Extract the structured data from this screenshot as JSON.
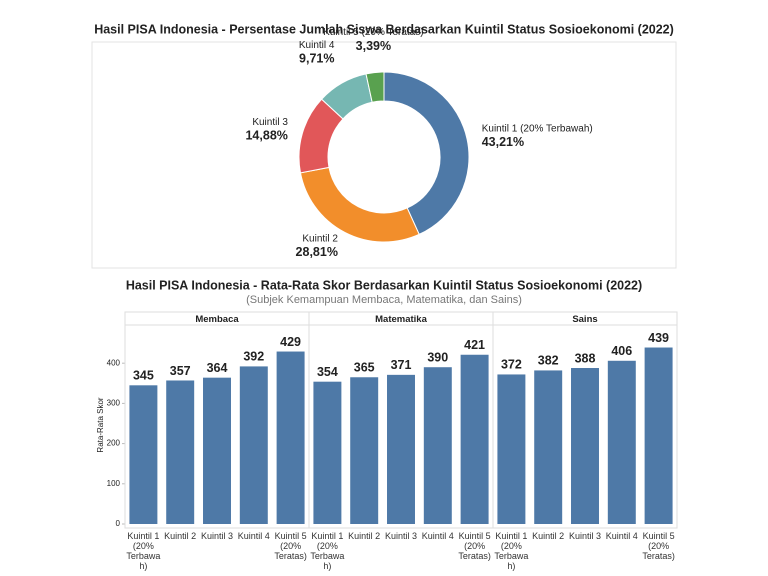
{
  "chart_data": [
    {
      "type": "donut",
      "title": "Hasil PISA Indonesia - Persentase Jumlah Siswa Berdasarkan Kuintil Status Sosioekonomi (2022)",
      "categories": [
        "Kuintil 1 (20% Terbawah)",
        "Kuintil 2",
        "Kuintil 3",
        "Kuintil 4",
        "Kuintil 5 (20% Teratas)"
      ],
      "values": [
        43.21,
        28.81,
        14.88,
        9.71,
        3.39
      ],
      "value_labels": [
        "43,21%",
        "28,81%",
        "14,88%",
        "9,71%",
        "3,39%"
      ],
      "colors": [
        "#4e79a7",
        "#f28e2b",
        "#e15759",
        "#76b7b2",
        "#59a14f"
      ]
    },
    {
      "type": "bar",
      "title": "Hasil PISA Indonesia - Rata-Rata Skor Berdasarkan Kuintil Status Sosioekonomi (2022)",
      "subtitle": "(Subjek Kemampuan Membaca, Matematika, dan Sains)",
      "y_label": "Rata-Rata Skor",
      "categories": [
        "Kuintil 1 (20% Terbawah)",
        "Kuintil 2",
        "Kuintil 3",
        "Kuintil 4",
        "Kuintil 5 (20% Teratas)"
      ],
      "panels": [
        {
          "name": "Membaca",
          "values": [
            345,
            357,
            364,
            392,
            429
          ]
        },
        {
          "name": "Matematika",
          "values": [
            354,
            365,
            371,
            390,
            421
          ]
        },
        {
          "name": "Sains",
          "values": [
            372,
            382,
            388,
            406,
            439
          ]
        }
      ],
      "color": "#4e79a7",
      "ylim": [
        0,
        495
      ],
      "yticks": [
        0,
        100,
        200,
        300,
        400
      ]
    }
  ]
}
